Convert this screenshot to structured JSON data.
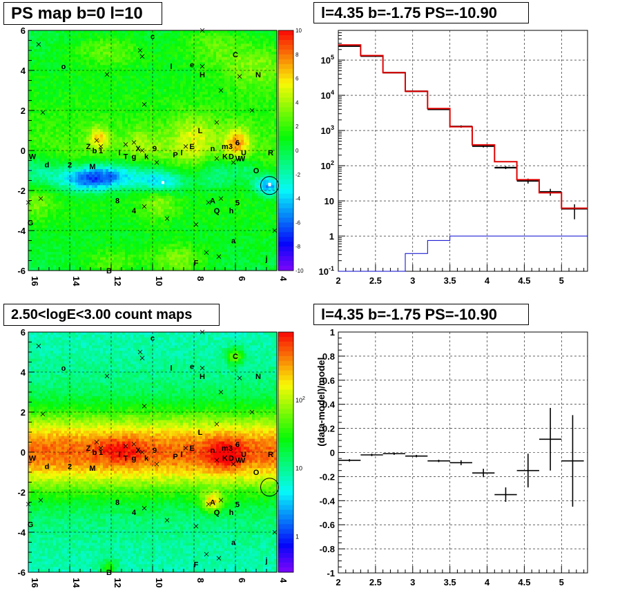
{
  "panels": {
    "ps_map_title": "PS map b=0 l=10",
    "spectrum_title": "l=4.35 b=-1.75 PS=-10.90",
    "count_map_title": "2.50<logE<3.00 count maps",
    "residual_title": "l=4.35 b=-1.75 PS=-10.90"
  },
  "colors": {
    "data": "#000000",
    "model": "#e00000",
    "background_model": "#0000cc",
    "grid": "#000000"
  },
  "chart_data": [
    {
      "type": "heatmap",
      "title": "PS map b=0 l=10",
      "xlim": [
        16,
        4
      ],
      "ylim": [
        -6,
        6
      ],
      "x_ticks": [
        "16",
        "14",
        "12",
        "10",
        "8",
        "6",
        "4"
      ],
      "y_ticks": [
        "6",
        "4",
        "2",
        "0",
        "-2",
        "-4",
        "-6"
      ],
      "colorbar": {
        "range": [
          -10,
          10
        ],
        "ticks": [
          "10",
          "8",
          "6",
          "4",
          "2",
          "0",
          "-2",
          "-4",
          "-6",
          "-8",
          "-10"
        ]
      },
      "source_labels": [
        {
          "t": "c",
          "l": 10.0,
          "b": 5.7
        },
        {
          "t": "C",
          "l": 6.0,
          "b": 4.8
        },
        {
          "t": "o",
          "l": 14.3,
          "b": 4.2
        },
        {
          "t": "l",
          "l": 9.1,
          "b": 4.2
        },
        {
          "t": "e",
          "l": 8.1,
          "b": 4.3
        },
        {
          "t": "H",
          "l": 7.6,
          "b": 3.8
        },
        {
          "t": "N",
          "l": 4.9,
          "b": 3.8
        },
        {
          "t": "L",
          "l": 7.7,
          "b": 1.0
        },
        {
          "t": "Z",
          "l": 13.1,
          "b": 0.2
        },
        {
          "t": "b",
          "l": 12.8,
          "b": 0.0
        },
        {
          "t": "1",
          "l": 12.5,
          "b": 0.0
        },
        {
          "t": "l",
          "l": 11.6,
          "b": -0.1
        },
        {
          "t": "T",
          "l": 11.3,
          "b": -0.3
        },
        {
          "t": "g",
          "l": 10.9,
          "b": -0.3
        },
        {
          "t": "X",
          "l": 10.7,
          "b": 0.1
        },
        {
          "t": "k",
          "l": 10.3,
          "b": -0.3
        },
        {
          "t": "9",
          "l": 9.9,
          "b": 0.1
        },
        {
          "t": "P",
          "l": 8.9,
          "b": -0.2
        },
        {
          "t": "l",
          "l": 8.6,
          "b": -0.1
        },
        {
          "t": "E",
          "l": 8.1,
          "b": 0.2
        },
        {
          "t": "n",
          "l": 7.1,
          "b": 0.1
        },
        {
          "t": "m3",
          "l": 6.4,
          "b": 0.2
        },
        {
          "t": "6",
          "l": 5.9,
          "b": 0.4
        },
        {
          "t": "U",
          "l": 5.6,
          "b": -0.1
        },
        {
          "t": "R",
          "l": 4.3,
          "b": -0.1
        },
        {
          "t": "K",
          "l": 6.5,
          "b": -0.3
        },
        {
          "t": "D",
          "l": 6.2,
          "b": -0.3
        },
        {
          "t": "V",
          "l": 5.9,
          "b": -0.4
        },
        {
          "t": "W",
          "l": 5.7,
          "b": -0.4
        },
        {
          "t": "W",
          "l": 15.8,
          "b": -0.3
        },
        {
          "t": "d",
          "l": 15.1,
          "b": -0.7
        },
        {
          "t": "2",
          "l": 14.0,
          "b": -0.7
        },
        {
          "t": "M",
          "l": 12.9,
          "b": -0.8
        },
        {
          "t": "O",
          "l": 5.0,
          "b": -1.0
        },
        {
          "t": "8",
          "l": 11.7,
          "b": -2.5
        },
        {
          "t": "A",
          "l": 7.1,
          "b": -2.5
        },
        {
          "t": "5",
          "l": 5.9,
          "b": -2.6
        },
        {
          "t": "Q",
          "l": 6.9,
          "b": -3.0
        },
        {
          "t": "h",
          "l": 6.2,
          "b": -3.0
        },
        {
          "t": "4",
          "l": 10.9,
          "b": -3.0
        },
        {
          "t": "G",
          "l": 15.9,
          "b": -3.6
        },
        {
          "t": "a",
          "l": 6.1,
          "b": -4.5
        },
        {
          "t": "j",
          "l": 4.5,
          "b": -5.4
        },
        {
          "t": "B",
          "l": 12.1,
          "b": -6.0
        },
        {
          "t": "F",
          "l": 7.9,
          "b": -5.6
        }
      ],
      "crosses": [
        [
          15.5,
          5.3
        ],
        [
          15.3,
          1.9
        ],
        [
          12.2,
          3.8
        ],
        [
          10.6,
          5.0
        ],
        [
          10.5,
          4.7
        ],
        [
          10.4,
          2.3
        ],
        [
          7.6,
          6.0
        ],
        [
          7.6,
          4.2
        ],
        [
          6.7,
          3.0
        ],
        [
          5.8,
          3.7
        ],
        [
          5.2,
          2.0
        ],
        [
          6.9,
          1.4
        ],
        [
          12.7,
          0.5
        ],
        [
          12.5,
          0.2
        ],
        [
          11.3,
          0.3
        ],
        [
          10.9,
          0.4
        ],
        [
          10.5,
          0.0
        ],
        [
          9.8,
          -0.6
        ],
        [
          8.4,
          0.2
        ],
        [
          6.9,
          -0.4
        ],
        [
          6.1,
          -0.6
        ],
        [
          15.4,
          -2.4
        ],
        [
          16.0,
          -2.6
        ],
        [
          10.4,
          -2.8
        ],
        [
          7.3,
          -2.6
        ],
        [
          6.7,
          -2.4
        ],
        [
          9.3,
          -3.4
        ],
        [
          7.9,
          -3.7
        ],
        [
          6.8,
          -5.3
        ],
        [
          7.4,
          -5.1
        ],
        [
          4.1,
          -4.0
        ]
      ],
      "marker": {
        "l": 4.35,
        "b": -1.75
      }
    },
    {
      "type": "line",
      "title": "l=4.35 b=-1.75 PS=-10.90",
      "xlim": [
        2,
        5.35
      ],
      "ylim": [
        0.1,
        700000
      ],
      "y_scale": "log",
      "x_ticks": [
        "2",
        "2.5",
        "3",
        "3.5",
        "4",
        "4.5",
        "5"
      ],
      "y_ticks": [
        "10^5",
        "10^4",
        "10^3",
        "10^2",
        "10",
        "1",
        "10^-1"
      ],
      "bin_edges": [
        2.0,
        2.3,
        2.6,
        2.9,
        3.2,
        3.5,
        3.8,
        4.1,
        4.4,
        4.7,
        5.0,
        5.35
      ],
      "series": [
        {
          "name": "",
          "role": "data",
          "values": [
            250000,
            130000,
            44000,
            13000,
            4000,
            1300,
            360,
            88,
            37,
            18,
            6
          ],
          "err_lo": [
            0,
            0,
            0,
            0,
            200,
            100,
            30,
            8,
            6,
            4,
            3
          ],
          "err_hi": [
            0,
            0,
            0,
            0,
            200,
            100,
            30,
            8,
            6,
            4,
            2
          ]
        },
        {
          "name": "",
          "role": "model",
          "values": [
            270000,
            135000,
            44000,
            13000,
            4200,
            1280,
            390,
            130,
            40,
            17,
            6.2
          ]
        },
        {
          "name": "",
          "role": "background",
          "values": [
            0.1,
            0.1,
            0.1,
            0.32,
            0.75,
            1.0,
            1.0,
            1.0,
            1.0,
            1.0,
            1.0
          ]
        }
      ]
    },
    {
      "type": "heatmap",
      "title": "2.50<logE<3.00 count maps",
      "xlim": [
        16,
        4
      ],
      "ylim": [
        -6,
        6
      ],
      "x_ticks": [
        "16",
        "14",
        "12",
        "10",
        "8",
        "6",
        "4"
      ],
      "y_ticks": [
        "6",
        "4",
        "2",
        "0",
        "-2",
        "-4",
        "-6"
      ],
      "colorbar": {
        "scale": "log",
        "range": [
          0.3,
          1000
        ],
        "ticks": [
          "10^2",
          "10",
          "1"
        ]
      }
    },
    {
      "type": "scatter",
      "title": "l=4.35 b=-1.75 PS=-10.90",
      "xlim": [
        2,
        5.35
      ],
      "ylim": [
        -1,
        1
      ],
      "ylabel": "(data-model)/model",
      "x_ticks": [
        "2",
        "2.5",
        "3",
        "3.5",
        "4",
        "4.5",
        "5"
      ],
      "y_ticks": [
        "1",
        "0.8",
        "0.6",
        "0.4",
        "0.2",
        "0",
        "-0.2",
        "-0.4",
        "-0.6",
        "-0.8",
        "-1"
      ],
      "points": [
        {
          "x": 2.15,
          "y": -0.065,
          "xerr": 0.15,
          "yerr": 0.01
        },
        {
          "x": 2.45,
          "y": -0.02,
          "xerr": 0.15,
          "yerr": 0.01
        },
        {
          "x": 2.75,
          "y": -0.01,
          "xerr": 0.15,
          "yerr": 0.01
        },
        {
          "x": 3.05,
          "y": -0.03,
          "xerr": 0.15,
          "yerr": 0.01
        },
        {
          "x": 3.35,
          "y": -0.07,
          "xerr": 0.15,
          "yerr": 0.01
        },
        {
          "x": 3.65,
          "y": -0.085,
          "xerr": 0.15,
          "yerr": 0.02
        },
        {
          "x": 3.95,
          "y": -0.17,
          "xerr": 0.15,
          "yerr": 0.035
        },
        {
          "x": 4.25,
          "y": -0.35,
          "xerr": 0.15,
          "yerr": 0.06
        },
        {
          "x": 4.55,
          "y": -0.15,
          "xerr": 0.15,
          "yerr": 0.14
        },
        {
          "x": 4.85,
          "y": 0.11,
          "xerr": 0.15,
          "yerr": 0.26
        },
        {
          "x": 5.15,
          "y": -0.07,
          "xerr": 0.15,
          "yerr": 0.38
        }
      ]
    }
  ]
}
